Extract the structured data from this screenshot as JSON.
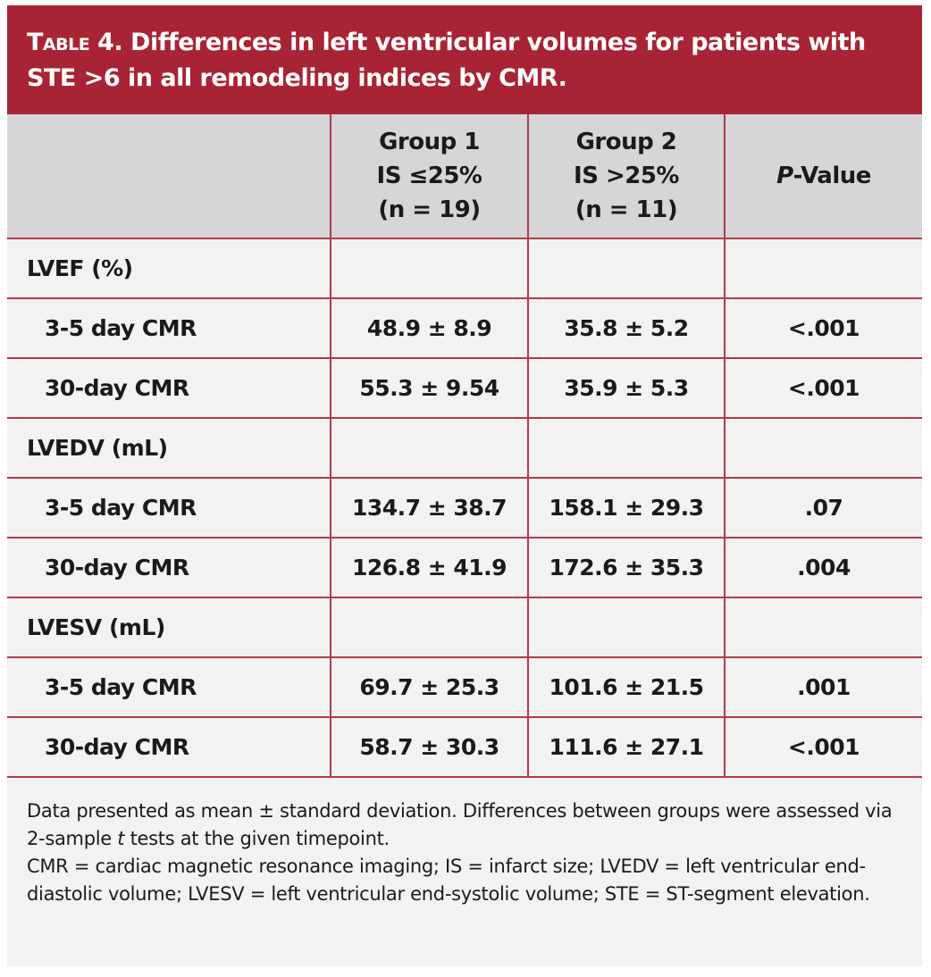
{
  "title": {
    "prefix": "Table 4.",
    "text": " Differences in  left ventricular  volumes for patients with STE >6 in all remodeling indices by CMR."
  },
  "header": {
    "col0": "",
    "col1": [
      "Group 1",
      "IS ≤25%",
      "(n = 19)"
    ],
    "col2": [
      "Group 2",
      "IS >25%",
      "(n = 11)"
    ],
    "col3_italic": "P",
    "col3_rest": "-Value"
  },
  "sections": [
    {
      "label": "LVEF (%)",
      "rows": [
        {
          "label": "3-5 day CMR",
          "g1": "48.9 ± 8.9",
          "g2": "35.8 ± 5.2",
          "p": "<.001"
        },
        {
          "label": "30-day CMR",
          "g1": "55.3 ± 9.54",
          "g2": "35.9 ± 5.3",
          "p": "<.001"
        }
      ]
    },
    {
      "label": "LVEDV (mL)",
      "rows": [
        {
          "label": "3-5 day CMR",
          "g1": "134.7 ± 38.7",
          "g2": "158.1 ± 29.3",
          "p": ".07"
        },
        {
          "label": "30-day CMR",
          "g1": "126.8 ± 41.9",
          "g2": "172.6 ± 35.3",
          "p": ".004"
        }
      ]
    },
    {
      "label": "LVESV (mL)",
      "rows": [
        {
          "label": "3-5 day CMR",
          "g1": "69.7 ± 25.3",
          "g2": "101.6 ± 21.5",
          "p": ".001"
        },
        {
          "label": "30-day CMR",
          "g1": "58.7 ± 30.3",
          "g2": "111.6 ± 27.1",
          "p": "<.001"
        }
      ]
    }
  ],
  "footnote": {
    "line1a": "Data presented as mean ± standard deviation. Differences between groups were assessed via 2-sample ",
    "line1i": "t",
    "line1b": " tests at the given timepoint.",
    "line2": "CMR = cardiac magnetic resonance imaging; IS = infarct size; LVEDV = left ventricular end-diastolic volume; LVESV = left ventricular end-systolic volume; STE = ST-segment elevation."
  },
  "colors": {
    "accent": "#a82434",
    "header_bg": "#d6d5d8",
    "body_bg": "#f3f2f3"
  }
}
